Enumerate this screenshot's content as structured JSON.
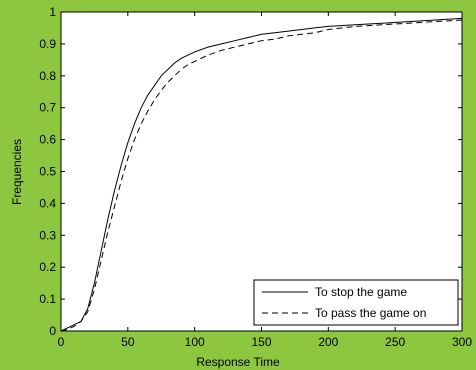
{
  "chart_data": {
    "type": "line",
    "title": "",
    "xlabel": "Response Time",
    "ylabel": "Frequencies",
    "xlim": [
      0,
      300
    ],
    "ylim": [
      0,
      1
    ],
    "xticks": [
      0,
      50,
      100,
      150,
      200,
      250,
      300
    ],
    "yticks": [
      0,
      0.1,
      0.2,
      0.3,
      0.4,
      0.5,
      0.6,
      0.7,
      0.8,
      0.9,
      1
    ],
    "grid": false,
    "legend_position": "bottom-right",
    "colors": {
      "figure_background": "#8dc63f",
      "plot_background": "#ffffff",
      "line": "#000000"
    },
    "series": [
      {
        "name": "To stop the game",
        "style": "solid",
        "x": [
          0,
          5,
          10,
          15,
          20,
          25,
          30,
          35,
          40,
          45,
          50,
          55,
          60,
          65,
          70,
          75,
          80,
          85,
          90,
          95,
          100,
          110,
          120,
          130,
          140,
          150,
          160,
          170,
          180,
          190,
          200,
          220,
          240,
          260,
          280,
          300
        ],
        "y": [
          0,
          0.01,
          0.02,
          0.03,
          0.07,
          0.15,
          0.25,
          0.35,
          0.44,
          0.52,
          0.59,
          0.65,
          0.7,
          0.74,
          0.77,
          0.8,
          0.82,
          0.84,
          0.855,
          0.865,
          0.875,
          0.89,
          0.9,
          0.91,
          0.92,
          0.93,
          0.935,
          0.94,
          0.945,
          0.95,
          0.955,
          0.96,
          0.965,
          0.97,
          0.975,
          0.98
        ]
      },
      {
        "name": "To pass the game on",
        "style": "dashed",
        "x": [
          0,
          5,
          10,
          15,
          20,
          25,
          30,
          35,
          40,
          45,
          50,
          55,
          60,
          65,
          70,
          75,
          80,
          85,
          90,
          95,
          100,
          110,
          120,
          130,
          140,
          150,
          160,
          170,
          180,
          190,
          200,
          220,
          240,
          260,
          280,
          300
        ],
        "y": [
          0,
          0.005,
          0.015,
          0.03,
          0.06,
          0.13,
          0.22,
          0.31,
          0.39,
          0.47,
          0.54,
          0.6,
          0.65,
          0.69,
          0.725,
          0.755,
          0.78,
          0.8,
          0.82,
          0.835,
          0.845,
          0.865,
          0.88,
          0.89,
          0.9,
          0.91,
          0.915,
          0.925,
          0.93,
          0.935,
          0.945,
          0.955,
          0.96,
          0.965,
          0.97,
          0.975
        ]
      }
    ]
  }
}
